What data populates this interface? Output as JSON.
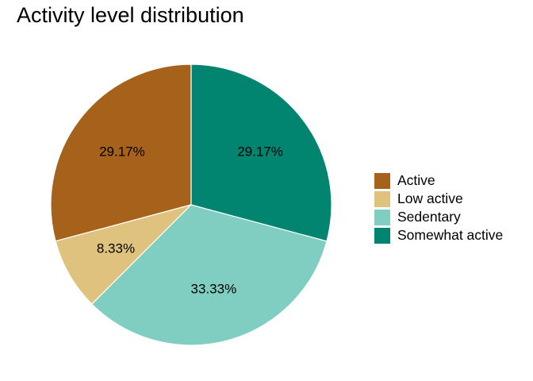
{
  "chart_data": {
    "type": "pie",
    "title": "Activity level distribution",
    "categories": [
      "Active",
      "Low active",
      "Sedentary",
      "Somewhat active"
    ],
    "values": [
      29.17,
      8.33,
      33.33,
      29.17
    ],
    "labels": [
      "29.17%",
      "8.33%",
      "33.33%",
      "29.17%"
    ],
    "colors": [
      "#A6611A",
      "#DFC27D",
      "#80CDC1",
      "#018571"
    ],
    "legend_position": "right",
    "direction": "counterclockwise-from-top"
  }
}
